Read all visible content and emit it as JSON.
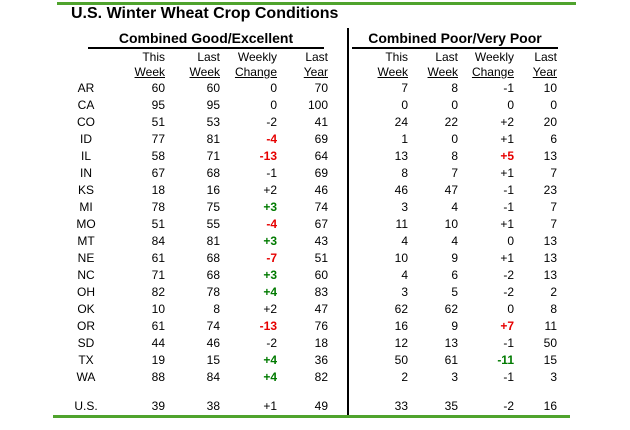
{
  "title": "U.S. Winter Wheat Crop Conditions",
  "sections": {
    "left": "Combined Good/Excellent",
    "right": "Combined Poor/Very Poor"
  },
  "column_headers": {
    "line1": [
      "This",
      "Last",
      "Weekly",
      "Last"
    ],
    "line2": [
      "Week",
      "Week",
      "Change",
      "Year"
    ]
  },
  "colors": {
    "accent_line": "#4FA32D",
    "negative_change": "#E60000",
    "positive_change": "#007A00"
  },
  "chart_data": {
    "type": "table",
    "title": "U.S. Winter Wheat Crop Conditions",
    "column_groups": [
      "Combined Good/Excellent",
      "Combined Poor/Very Poor"
    ],
    "columns": [
      "This Week",
      "Last Week",
      "Weekly Change",
      "Last Year"
    ],
    "rows": [
      {
        "state": "AR",
        "ge": [
          "60",
          "60",
          "0",
          "70"
        ],
        "ge_change_style": "plain",
        "pvp": [
          "7",
          "8",
          "-1",
          "10"
        ],
        "pvp_change_style": "plain"
      },
      {
        "state": "CA",
        "ge": [
          "95",
          "95",
          "0",
          "100"
        ],
        "ge_change_style": "plain",
        "pvp": [
          "0",
          "0",
          "0",
          "0"
        ],
        "pvp_change_style": "plain"
      },
      {
        "state": "CO",
        "ge": [
          "51",
          "53",
          "-2",
          "41"
        ],
        "ge_change_style": "plain",
        "pvp": [
          "24",
          "22",
          "+2",
          "20"
        ],
        "pvp_change_style": "plain"
      },
      {
        "state": "ID",
        "ge": [
          "77",
          "81",
          "-4",
          "69"
        ],
        "ge_change_style": "red",
        "pvp": [
          "1",
          "0",
          "+1",
          "6"
        ],
        "pvp_change_style": "plain"
      },
      {
        "state": "IL",
        "ge": [
          "58",
          "71",
          "-13",
          "64"
        ],
        "ge_change_style": "red",
        "pvp": [
          "13",
          "8",
          "+5",
          "13"
        ],
        "pvp_change_style": "red"
      },
      {
        "state": "IN",
        "ge": [
          "67",
          "68",
          "-1",
          "69"
        ],
        "ge_change_style": "plain",
        "pvp": [
          "8",
          "7",
          "+1",
          "7"
        ],
        "pvp_change_style": "plain"
      },
      {
        "state": "KS",
        "ge": [
          "18",
          "16",
          "+2",
          "46"
        ],
        "ge_change_style": "plain",
        "pvp": [
          "46",
          "47",
          "-1",
          "23"
        ],
        "pvp_change_style": "plain"
      },
      {
        "state": "MI",
        "ge": [
          "78",
          "75",
          "+3",
          "74"
        ],
        "ge_change_style": "green",
        "pvp": [
          "3",
          "4",
          "-1",
          "7"
        ],
        "pvp_change_style": "plain"
      },
      {
        "state": "MO",
        "ge": [
          "51",
          "55",
          "-4",
          "67"
        ],
        "ge_change_style": "red",
        "pvp": [
          "11",
          "10",
          "+1",
          "7"
        ],
        "pvp_change_style": "plain"
      },
      {
        "state": "MT",
        "ge": [
          "84",
          "81",
          "+3",
          "43"
        ],
        "ge_change_style": "green",
        "pvp": [
          "4",
          "4",
          "0",
          "13"
        ],
        "pvp_change_style": "plain"
      },
      {
        "state": "NE",
        "ge": [
          "61",
          "68",
          "-7",
          "51"
        ],
        "ge_change_style": "red",
        "pvp": [
          "10",
          "9",
          "+1",
          "13"
        ],
        "pvp_change_style": "plain"
      },
      {
        "state": "NC",
        "ge": [
          "71",
          "68",
          "+3",
          "60"
        ],
        "ge_change_style": "green",
        "pvp": [
          "4",
          "6",
          "-2",
          "13"
        ],
        "pvp_change_style": "plain"
      },
      {
        "state": "OH",
        "ge": [
          "82",
          "78",
          "+4",
          "83"
        ],
        "ge_change_style": "green",
        "pvp": [
          "3",
          "5",
          "-2",
          "2"
        ],
        "pvp_change_style": "plain"
      },
      {
        "state": "OK",
        "ge": [
          "10",
          "8",
          "+2",
          "47"
        ],
        "ge_change_style": "plain",
        "pvp": [
          "62",
          "62",
          "0",
          "8"
        ],
        "pvp_change_style": "plain"
      },
      {
        "state": "OR",
        "ge": [
          "61",
          "74",
          "-13",
          "76"
        ],
        "ge_change_style": "red",
        "pvp": [
          "16",
          "9",
          "+7",
          "11"
        ],
        "pvp_change_style": "red"
      },
      {
        "state": "SD",
        "ge": [
          "44",
          "46",
          "-2",
          "18"
        ],
        "ge_change_style": "plain",
        "pvp": [
          "12",
          "13",
          "-1",
          "50"
        ],
        "pvp_change_style": "plain"
      },
      {
        "state": "TX",
        "ge": [
          "19",
          "15",
          "+4",
          "36"
        ],
        "ge_change_style": "green",
        "pvp": [
          "50",
          "61",
          "-11",
          "15"
        ],
        "pvp_change_style": "green"
      },
      {
        "state": "WA",
        "ge": [
          "88",
          "84",
          "+4",
          "82"
        ],
        "ge_change_style": "green",
        "pvp": [
          "2",
          "3",
          "-1",
          "3"
        ],
        "pvp_change_style": "plain"
      }
    ],
    "total_row": {
      "state": "U.S.",
      "ge": [
        "39",
        "38",
        "+1",
        "49"
      ],
      "ge_change_style": "plain",
      "pvp": [
        "33",
        "35",
        "-2",
        "16"
      ],
      "pvp_change_style": "plain"
    }
  }
}
